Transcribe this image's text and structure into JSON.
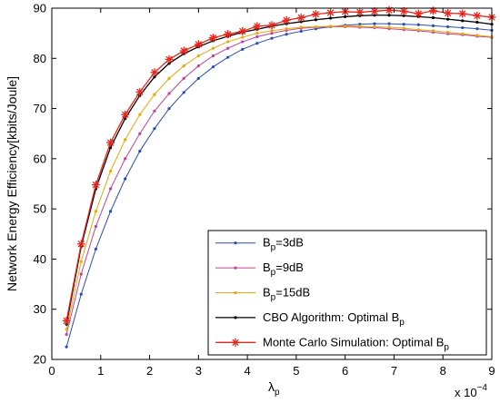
{
  "chart_data": {
    "type": "line",
    "xlabel": "λ",
    "xlabel_sub": "p",
    "ylabel": "Network Energy Efficiency[kbits/Joule]",
    "x_multiplier": "x 10",
    "x_multiplier_exp": "−4",
    "xlim": [
      0,
      9
    ],
    "ylim": [
      20,
      90
    ],
    "x_ticks": [
      0,
      1,
      2,
      3,
      4,
      5,
      6,
      7,
      8,
      9
    ],
    "y_ticks": [
      20,
      30,
      40,
      50,
      60,
      70,
      80,
      90
    ],
    "grid": false,
    "legend_position": "bottom-right",
    "x": [
      0.3,
      0.6,
      0.9,
      1.2,
      1.5,
      1.8,
      2.1,
      2.4,
      2.7,
      3.0,
      3.3,
      3.6,
      3.9,
      4.2,
      4.5,
      4.8,
      5.1,
      5.4,
      5.7,
      6.0,
      6.3,
      6.6,
      6.9,
      7.2,
      7.5,
      7.8,
      8.1,
      8.4,
      8.7,
      9.0
    ],
    "series": [
      {
        "name": "B",
        "name_sub": "p",
        "name_suffix": "=3dB",
        "color": "#2a4cb5",
        "marker": "dot",
        "values": [
          22.5,
          33.0,
          42.0,
          49.5,
          56.0,
          61.5,
          66.0,
          70.0,
          73.2,
          76.0,
          78.3,
          80.2,
          81.8,
          83.0,
          84.0,
          84.8,
          85.4,
          85.9,
          86.3,
          86.6,
          86.8,
          86.9,
          86.9,
          86.8,
          86.7,
          86.5,
          86.3,
          86.1,
          85.9,
          85.6
        ]
      },
      {
        "name": "B",
        "name_sub": "p",
        "name_suffix": "=9dB",
        "color": "#c0439a",
        "marker": "dot",
        "values": [
          25.0,
          37.0,
          46.5,
          54.0,
          60.0,
          65.0,
          69.5,
          73.0,
          76.0,
          78.5,
          80.5,
          82.0,
          83.3,
          84.3,
          85.0,
          85.6,
          86.0,
          86.2,
          86.3,
          86.3,
          86.2,
          86.1,
          85.9,
          85.7,
          85.5,
          85.2,
          84.9,
          84.7,
          84.4,
          84.2
        ]
      },
      {
        "name": "B",
        "name_sub": "p",
        "name_suffix": "=15dB",
        "color": "#e8a80c",
        "marker": "dot",
        "values": [
          26.0,
          39.5,
          49.5,
          57.5,
          63.8,
          68.8,
          72.8,
          76.0,
          78.5,
          80.5,
          82.0,
          83.3,
          84.2,
          85.0,
          85.5,
          85.9,
          86.2,
          86.3,
          86.4,
          86.4,
          86.4,
          86.3,
          86.2,
          86.0,
          85.7,
          85.5,
          85.2,
          84.9,
          84.6,
          84.3
        ]
      },
      {
        "name": "CBO Algorithm: Optimal B",
        "name_sub": "p",
        "name_suffix": "",
        "color": "#000000",
        "marker": "dot",
        "values": [
          27.0,
          42.5,
          54.0,
          62.2,
          68.0,
          72.6,
          76.3,
          79.0,
          80.9,
          82.3,
          83.5,
          84.4,
          85.2,
          85.8,
          86.4,
          86.9,
          87.3,
          87.7,
          88.0,
          88.3,
          88.5,
          88.6,
          88.6,
          88.5,
          88.3,
          88.1,
          87.8,
          87.5,
          87.2,
          86.8
        ]
      },
      {
        "name": "Monte Carlo Simulation: Optimal B",
        "name_sub": "p",
        "name_suffix": "",
        "color": "#e8251c",
        "marker": "star",
        "values": [
          27.7,
          43.0,
          54.8,
          63.2,
          68.8,
          73.3,
          77.2,
          79.8,
          81.5,
          82.8,
          84.1,
          84.8,
          85.4,
          86.4,
          86.6,
          87.6,
          88.1,
          88.8,
          89.1,
          89.3,
          89.2,
          89.4,
          89.6,
          89.4,
          88.9,
          89.5,
          89.0,
          88.9,
          88.5,
          88.2
        ]
      }
    ]
  }
}
